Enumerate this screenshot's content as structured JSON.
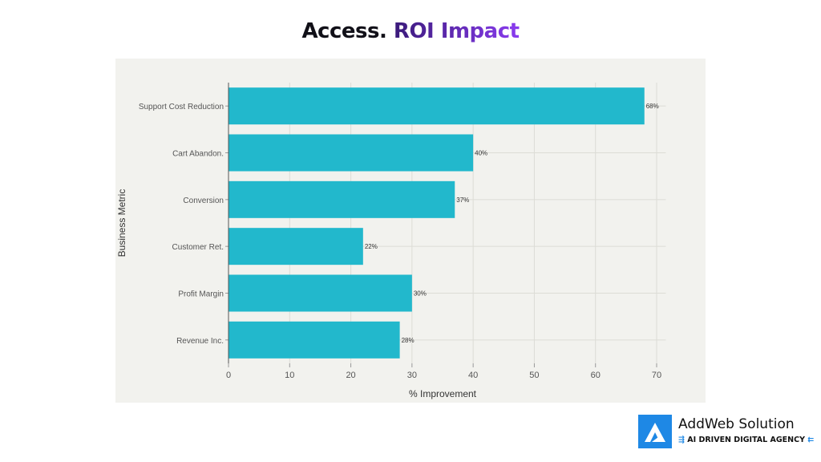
{
  "title": {
    "part1": "Access.",
    "part2": "ROI Impact"
  },
  "logo": {
    "name": "AddWeb Solution",
    "tagline": "AI DRIVEN DIGITAL AGENCY"
  },
  "chart_data": {
    "type": "bar",
    "orientation": "horizontal",
    "title": "Access. ROI Impact",
    "xlabel": "% Improvement",
    "ylabel": "Business Metric",
    "categories": [
      "Support Cost Reduction",
      "Cart Abandon.",
      "Conversion",
      "Customer Ret.",
      "Profit Margin",
      "Revenue Inc."
    ],
    "values": [
      68,
      40,
      37,
      22,
      30,
      28
    ],
    "data_labels": [
      "68%",
      "40%",
      "37%",
      "22%",
      "30%",
      "28%"
    ],
    "xlim": [
      0,
      71.5
    ],
    "xticks": [
      0,
      10,
      20,
      30,
      40,
      50,
      60,
      70
    ],
    "grid": true,
    "bar_color": "#22b8cc",
    "background": "#f2f2ee"
  }
}
